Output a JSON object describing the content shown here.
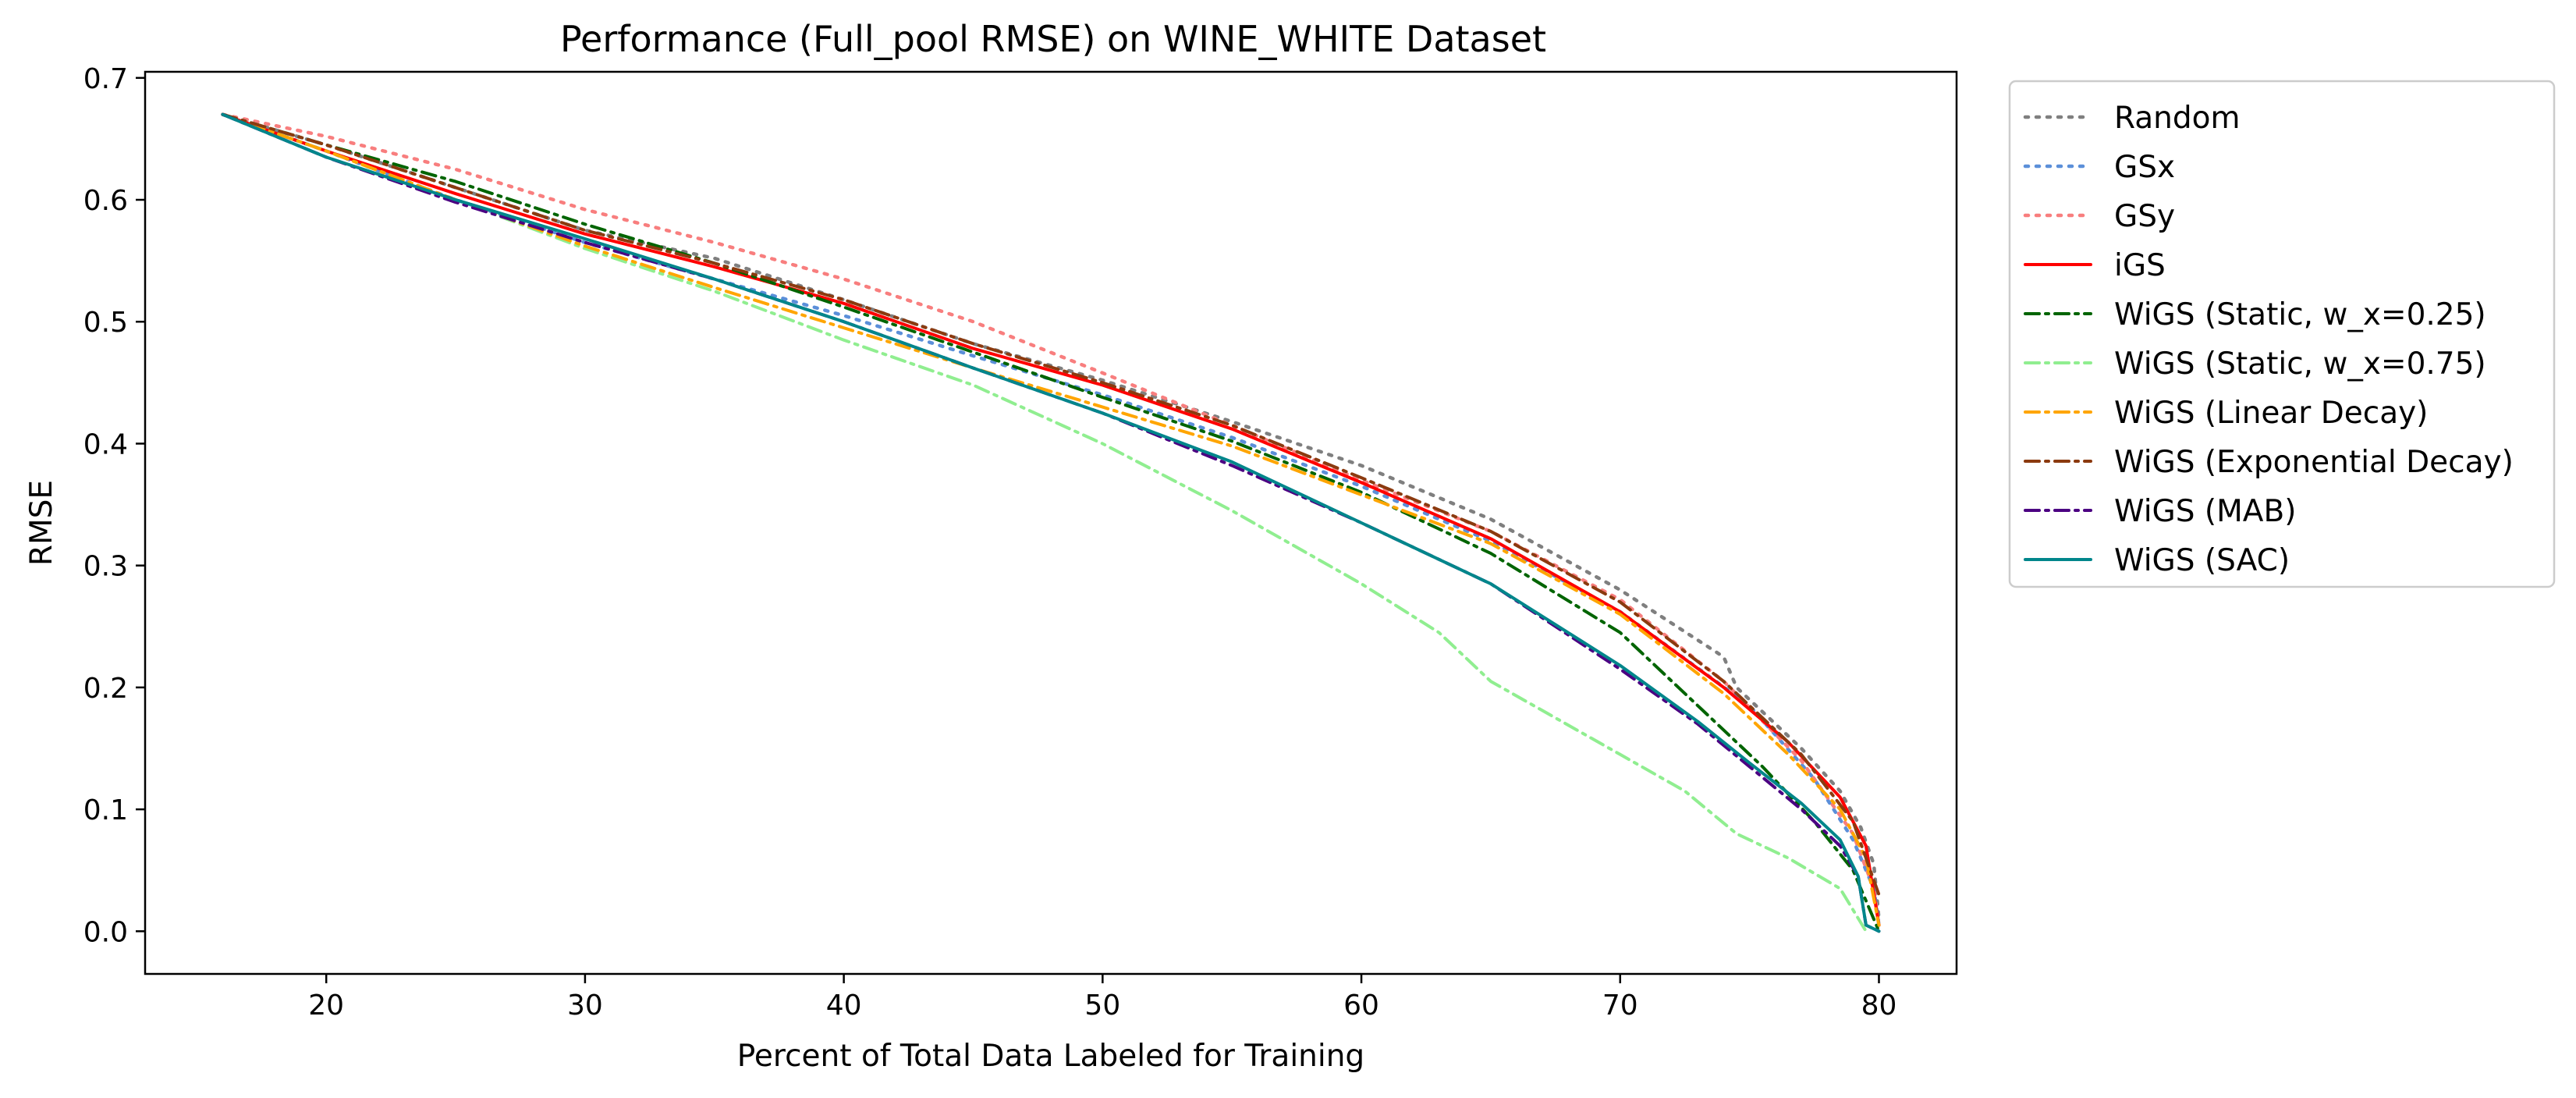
{
  "chart_data": {
    "type": "line",
    "title": "Performance (Full_pool RMSE) on WINE_WHITE Dataset",
    "xlabel": "Percent of Total Data Labeled for Training",
    "ylabel": "RMSE",
    "xlim": [
      13,
      83
    ],
    "ylim": [
      -0.035,
      0.705
    ],
    "xticks": [
      20,
      30,
      40,
      50,
      60,
      70,
      80
    ],
    "yticks": [
      0.0,
      0.1,
      0.2,
      0.3,
      0.4,
      0.5,
      0.6,
      0.7
    ],
    "grid": false,
    "legend_position": "outside-right-top",
    "series": [
      {
        "name": "Random",
        "color": "#7f7f7f",
        "dash": "dotted",
        "x": [
          16,
          20,
          25,
          30,
          35,
          40,
          45,
          50,
          55,
          60,
          65,
          70,
          74,
          74.5,
          77,
          78.5,
          79.3,
          79.8,
          80
        ],
        "y": [
          0.67,
          0.645,
          0.61,
          0.575,
          0.552,
          0.518,
          0.482,
          0.452,
          0.418,
          0.382,
          0.338,
          0.28,
          0.225,
          0.2,
          0.15,
          0.115,
          0.085,
          0.055,
          0.01
        ]
      },
      {
        "name": "GSx",
        "color": "#5b8fd9",
        "dash": "dotted",
        "x": [
          16,
          20,
          25,
          30,
          35,
          40,
          45,
          50,
          55,
          60,
          65,
          70,
          75,
          77.5,
          79,
          79.8,
          80
        ],
        "y": [
          0.67,
          0.64,
          0.6,
          0.565,
          0.535,
          0.505,
          0.472,
          0.44,
          0.405,
          0.365,
          0.32,
          0.262,
          0.185,
          0.125,
          0.075,
          0.035,
          0.005
        ]
      },
      {
        "name": "GSy",
        "color": "#f87e7e",
        "dash": "dotted",
        "x": [
          16,
          20,
          25,
          30,
          35,
          40,
          45,
          50,
          55,
          60,
          65,
          70,
          74,
          77,
          79,
          79.8,
          80
        ],
        "y": [
          0.67,
          0.652,
          0.625,
          0.592,
          0.565,
          0.535,
          0.5,
          0.458,
          0.415,
          0.37,
          0.328,
          0.272,
          0.205,
          0.14,
          0.08,
          0.035,
          0.005
        ]
      },
      {
        "name": "iGS",
        "color": "#ff0000",
        "dash": "solid",
        "x": [
          16,
          20,
          25,
          30,
          35,
          40,
          45,
          50,
          55,
          60,
          65,
          70,
          74,
          76.5,
          78.5,
          79.5,
          80
        ],
        "y": [
          0.67,
          0.64,
          0.605,
          0.572,
          0.545,
          0.515,
          0.478,
          0.448,
          0.412,
          0.368,
          0.322,
          0.262,
          0.2,
          0.155,
          0.11,
          0.07,
          0.005
        ]
      },
      {
        "name": "WiGS (Static, w_x=0.25)",
        "color": "#006400",
        "dash": "dashdot",
        "x": [
          16,
          20,
          25,
          30,
          35,
          40,
          45,
          50,
          55,
          60,
          65,
          70,
          73,
          75.5,
          77.5,
          79,
          80
        ],
        "y": [
          0.67,
          0.645,
          0.615,
          0.58,
          0.548,
          0.512,
          0.475,
          0.438,
          0.402,
          0.36,
          0.31,
          0.245,
          0.185,
          0.135,
          0.09,
          0.05,
          0.0
        ]
      },
      {
        "name": "WiGS (Static, w_x=0.75)",
        "color": "#90ee90",
        "dash": "dashdot",
        "x": [
          16,
          20,
          25,
          30,
          35,
          40,
          45,
          50,
          55,
          60,
          63,
          65,
          70,
          72.5,
          74.5,
          76.5,
          78.5,
          79.5
        ],
        "y": [
          0.67,
          0.64,
          0.6,
          0.56,
          0.525,
          0.485,
          0.448,
          0.4,
          0.345,
          0.285,
          0.245,
          0.205,
          0.145,
          0.115,
          0.08,
          0.06,
          0.035,
          0.0
        ]
      },
      {
        "name": "WiGS (Linear Decay)",
        "color": "#ffa500",
        "dash": "dashdot",
        "x": [
          16,
          20,
          25,
          30,
          35,
          40,
          45,
          50,
          55,
          60,
          65,
          70,
          74,
          76.5,
          78.5,
          79.5,
          80
        ],
        "y": [
          0.67,
          0.64,
          0.6,
          0.562,
          0.528,
          0.495,
          0.462,
          0.43,
          0.398,
          0.358,
          0.318,
          0.26,
          0.195,
          0.145,
          0.1,
          0.06,
          0.005
        ]
      },
      {
        "name": "WiGS (Exponential Decay)",
        "color": "#8b3a0f",
        "dash": "dashdot",
        "x": [
          16,
          20,
          25,
          30,
          35,
          40,
          45,
          50,
          55,
          60,
          65,
          70,
          74,
          77,
          79,
          80
        ],
        "y": [
          0.67,
          0.645,
          0.61,
          0.575,
          0.548,
          0.518,
          0.482,
          0.45,
          0.415,
          0.372,
          0.328,
          0.27,
          0.205,
          0.145,
          0.09,
          0.03
        ]
      },
      {
        "name": "WiGS (MAB)",
        "color": "#4b0082",
        "dash": "dashdot",
        "x": [
          16,
          20,
          25,
          30,
          35,
          40,
          45,
          50,
          55,
          60,
          65,
          70,
          73,
          75,
          77,
          78.5,
          79.2,
          79.5,
          80
        ],
        "y": [
          0.67,
          0.635,
          0.598,
          0.565,
          0.535,
          0.5,
          0.462,
          0.425,
          0.382,
          0.335,
          0.285,
          0.215,
          0.17,
          0.135,
          0.1,
          0.07,
          0.045,
          0.005,
          0.0
        ]
      },
      {
        "name": "WiGS (SAC)",
        "color": "#00868b",
        "dash": "solid",
        "x": [
          16,
          20,
          25,
          30,
          35,
          40,
          45,
          50,
          55,
          60,
          65,
          70,
          73,
          75,
          77,
          78.5,
          79.2,
          79.5,
          80
        ],
        "y": [
          0.67,
          0.635,
          0.6,
          0.568,
          0.535,
          0.5,
          0.462,
          0.425,
          0.385,
          0.335,
          0.285,
          0.218,
          0.172,
          0.138,
          0.105,
          0.075,
          0.045,
          0.005,
          0.0
        ]
      }
    ]
  }
}
